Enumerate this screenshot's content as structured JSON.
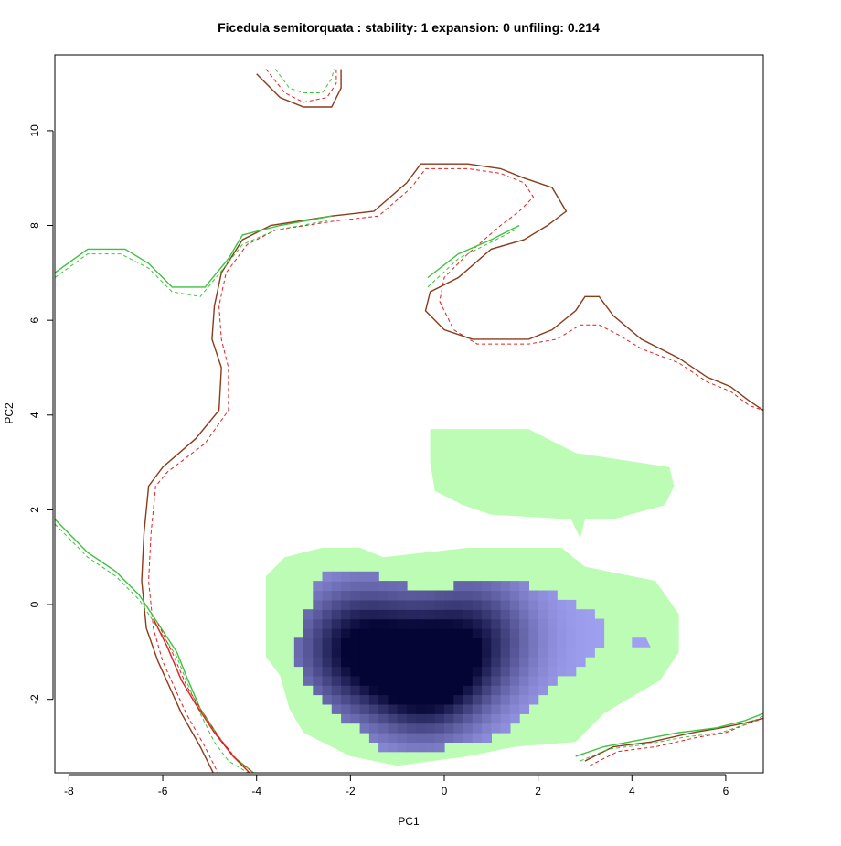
{
  "chart_data": {
    "type": "heatmap",
    "title": "Ficedula semitorquata : stability: 1 expansion: 0 unfiling: 0.214",
    "xlabel": "PC1",
    "ylabel": "PC2",
    "xlim": [
      -8.3,
      6.8
    ],
    "ylim": [
      -3.55,
      11.6
    ],
    "xticks": [
      -8,
      -6,
      -4,
      -2,
      0,
      2,
      4,
      6
    ],
    "yticks": [
      -2,
      0,
      2,
      4,
      6,
      8,
      10
    ],
    "grid": false,
    "legend": "none",
    "colors": {
      "overlap_fill": "#bcfcb4",
      "density_low": "#a0a0f2",
      "density_high": "#050535",
      "native_contour": "#8b3a1a",
      "native_contour_env": "#e02020",
      "invaded_contour": "#3ec23e"
    },
    "regions": {
      "green_upper_blob": [
        [
          -0.3,
          3.7
        ],
        [
          1.8,
          3.7
        ],
        [
          2.8,
          3.2
        ],
        [
          4.8,
          2.9
        ],
        [
          4.9,
          2.5
        ],
        [
          4.7,
          2.1
        ],
        [
          3.6,
          1.8
        ],
        [
          3.0,
          1.8
        ],
        [
          2.9,
          1.4
        ],
        [
          2.7,
          1.8
        ],
        [
          1.0,
          1.9
        ],
        [
          0.4,
          2.1
        ],
        [
          -0.2,
          2.4
        ],
        [
          -0.3,
          3.0
        ]
      ],
      "green_lower_blob": [
        [
          -3.8,
          0.6
        ],
        [
          -3.4,
          1.0
        ],
        [
          -2.6,
          1.2
        ],
        [
          -1.8,
          1.2
        ],
        [
          -1.3,
          1.0
        ],
        [
          0.5,
          1.2
        ],
        [
          2.5,
          1.2
        ],
        [
          3.0,
          0.8
        ],
        [
          4.5,
          0.5
        ],
        [
          5.0,
          -0.2
        ],
        [
          5.0,
          -1.0
        ],
        [
          4.6,
          -1.6
        ],
        [
          3.9,
          -2.0
        ],
        [
          3.4,
          -2.3
        ],
        [
          2.8,
          -2.9
        ],
        [
          1.5,
          -3.0
        ],
        [
          0.5,
          -3.2
        ],
        [
          -1.0,
          -3.4
        ],
        [
          -2.0,
          -3.2
        ],
        [
          -3.0,
          -2.7
        ],
        [
          -3.3,
          -2.2
        ],
        [
          -3.5,
          -1.5
        ],
        [
          -3.8,
          -1.1
        ]
      ],
      "density_region": [
        [
          -3.0,
          -0.6
        ],
        [
          -2.7,
          0.6
        ],
        [
          -1.8,
          0.8
        ],
        [
          -1.2,
          0.5
        ],
        [
          -0.3,
          0.3
        ],
        [
          0.5,
          0.5
        ],
        [
          1.5,
          0.5
        ],
        [
          2.5,
          0.2
        ],
        [
          3.3,
          -0.2
        ],
        [
          3.5,
          -0.8
        ],
        [
          3.0,
          -1.2
        ],
        [
          2.4,
          -1.6
        ],
        [
          1.8,
          -2.3
        ],
        [
          1.0,
          -2.8
        ],
        [
          0.0,
          -3.0
        ],
        [
          -1.0,
          -3.2
        ],
        [
          -1.6,
          -2.8
        ],
        [
          -2.4,
          -2.2
        ],
        [
          -3.0,
          -1.5
        ],
        [
          -3.3,
          -1.0
        ]
      ],
      "density_small_square": [
        [
          4.0,
          -0.7
        ],
        [
          4.3,
          -0.7
        ],
        [
          4.4,
          -0.9
        ],
        [
          4.0,
          -0.9
        ]
      ],
      "density_peaks": [
        {
          "x": -1.8,
          "y": -0.9,
          "weight": 1.0,
          "spread": 0.9
        },
        {
          "x": -0.4,
          "y": -1.6,
          "weight": 1.0,
          "spread": 0.8
        },
        {
          "x": 0.6,
          "y": -0.7,
          "weight": 0.75,
          "spread": 0.9
        }
      ]
    },
    "contours": {
      "native_solid_main": [
        [
          -4.9,
          -3.6
        ],
        [
          -5.2,
          -3.0
        ],
        [
          -5.6,
          -2.3
        ],
        [
          -6.1,
          -1.2
        ],
        [
          -6.35,
          -0.5
        ],
        [
          -6.45,
          0.5
        ],
        [
          -6.4,
          1.5
        ],
        [
          -6.3,
          2.5
        ],
        [
          -6.0,
          2.9
        ],
        [
          -5.3,
          3.5
        ],
        [
          -4.8,
          4.1
        ],
        [
          -4.75,
          5.0
        ],
        [
          -4.95,
          5.6
        ],
        [
          -4.9,
          6.3
        ],
        [
          -4.75,
          7.0
        ],
        [
          -4.3,
          7.7
        ],
        [
          -3.7,
          8.0
        ],
        [
          -2.4,
          8.2
        ],
        [
          -1.5,
          8.3
        ],
        [
          -0.8,
          8.9
        ],
        [
          -0.5,
          9.3
        ],
        [
          0.5,
          9.3
        ],
        [
          1.2,
          9.2
        ],
        [
          1.7,
          9.0
        ],
        [
          2.3,
          8.8
        ],
        [
          2.6,
          8.3
        ],
        [
          2.2,
          8.0
        ],
        [
          1.7,
          7.7
        ],
        [
          1.0,
          7.5
        ],
        [
          0.3,
          6.9
        ],
        [
          -0.3,
          6.6
        ],
        [
          -0.4,
          6.2
        ],
        [
          0.0,
          5.8
        ],
        [
          0.6,
          5.6
        ],
        [
          1.8,
          5.6
        ],
        [
          2.3,
          5.8
        ],
        [
          2.8,
          6.2
        ],
        [
          3.0,
          6.5
        ],
        [
          3.3,
          6.5
        ],
        [
          3.6,
          6.1
        ],
        [
          4.2,
          5.6
        ],
        [
          5.0,
          5.2
        ],
        [
          5.6,
          4.8
        ],
        [
          6.1,
          4.6
        ],
        [
          6.5,
          4.3
        ],
        [
          6.8,
          4.1
        ]
      ],
      "native_dashed_main": [
        [
          -4.8,
          -3.6
        ],
        [
          -5.1,
          -3.0
        ],
        [
          -5.5,
          -2.3
        ],
        [
          -6.0,
          -1.2
        ],
        [
          -6.2,
          -0.5
        ],
        [
          -6.3,
          0.5
        ],
        [
          -6.25,
          1.5
        ],
        [
          -6.15,
          2.5
        ],
        [
          -5.9,
          2.8
        ],
        [
          -5.1,
          3.4
        ],
        [
          -4.6,
          4.1
        ],
        [
          -4.6,
          5.0
        ],
        [
          -4.75,
          5.6
        ],
        [
          -4.8,
          6.3
        ],
        [
          -4.65,
          7.0
        ],
        [
          -4.2,
          7.6
        ],
        [
          -3.6,
          7.9
        ],
        [
          -2.3,
          8.1
        ],
        [
          -1.4,
          8.2
        ],
        [
          -0.7,
          8.8
        ],
        [
          -0.4,
          9.2
        ],
        [
          0.5,
          9.2
        ],
        [
          1.2,
          9.1
        ],
        [
          1.7,
          8.9
        ],
        [
          1.9,
          8.6
        ],
        [
          1.6,
          8.3
        ],
        [
          1.2,
          8.0
        ],
        [
          0.5,
          7.4
        ],
        [
          0.0,
          6.9
        ],
        [
          -0.1,
          6.4
        ],
        [
          0.2,
          5.8
        ],
        [
          0.7,
          5.5
        ],
        [
          1.8,
          5.5
        ],
        [
          2.4,
          5.6
        ],
        [
          2.9,
          5.9
        ],
        [
          3.3,
          5.9
        ],
        [
          3.7,
          5.7
        ],
        [
          4.2,
          5.4
        ],
        [
          5.0,
          5.1
        ],
        [
          5.6,
          4.7
        ],
        [
          6.1,
          4.5
        ],
        [
          6.5,
          4.2
        ],
        [
          6.8,
          4.1
        ]
      ],
      "invaded_solid_left": [
        [
          -8.3,
          7.0
        ],
        [
          -7.6,
          7.5
        ],
        [
          -6.8,
          7.5
        ],
        [
          -6.3,
          7.2
        ],
        [
          -5.8,
          6.7
        ],
        [
          -5.1,
          6.7
        ],
        [
          -4.6,
          7.3
        ],
        [
          -4.3,
          7.8
        ],
        [
          -3.5,
          8.0
        ],
        [
          -2.4,
          8.2
        ]
      ],
      "invaded_dashed_left": [
        [
          -8.3,
          6.9
        ],
        [
          -7.6,
          7.4
        ],
        [
          -6.9,
          7.4
        ],
        [
          -6.3,
          7.1
        ],
        [
          -5.8,
          6.6
        ],
        [
          -5.2,
          6.5
        ],
        [
          -4.7,
          7.1
        ],
        [
          -4.3,
          7.6
        ],
        [
          -3.6,
          7.9
        ],
        [
          -2.5,
          8.1
        ]
      ],
      "invaded_solid_right_upper": [
        [
          -0.35,
          6.9
        ],
        [
          0.3,
          7.4
        ],
        [
          1.0,
          7.7
        ],
        [
          1.6,
          8.0
        ]
      ],
      "invaded_dashed_right_upper": [
        [
          -0.35,
          6.7
        ],
        [
          0.3,
          7.3
        ],
        [
          0.9,
          7.6
        ],
        [
          1.5,
          7.9
        ]
      ],
      "native_top_solid": [
        [
          -4.0,
          11.2
        ],
        [
          -3.5,
          10.7
        ],
        [
          -3.0,
          10.5
        ],
        [
          -2.4,
          10.5
        ],
        [
          -2.2,
          10.9
        ],
        [
          -2.2,
          11.3
        ]
      ],
      "native_top_dashed": [
        [
          -3.8,
          11.3
        ],
        [
          -3.4,
          10.8
        ],
        [
          -3.0,
          10.6
        ],
        [
          -2.5,
          10.7
        ],
        [
          -2.3,
          11.0
        ],
        [
          -2.3,
          11.3
        ]
      ],
      "invaded_top_dashed": [
        [
          -3.6,
          11.3
        ],
        [
          -3.3,
          10.9
        ],
        [
          -3.0,
          10.8
        ],
        [
          -2.6,
          10.8
        ],
        [
          -2.4,
          11.1
        ],
        [
          -2.35,
          11.3
        ]
      ],
      "invaded_lower_left_solid": [
        [
          -8.3,
          1.8
        ],
        [
          -7.6,
          1.1
        ],
        [
          -7.0,
          0.7
        ],
        [
          -6.5,
          0.2
        ],
        [
          -6.1,
          -0.4
        ],
        [
          -5.7,
          -1.0
        ],
        [
          -5.5,
          -1.5
        ],
        [
          -5.2,
          -2.2
        ],
        [
          -4.8,
          -2.8
        ],
        [
          -4.5,
          -3.2
        ],
        [
          -4.0,
          -3.6
        ]
      ],
      "invaded_lower_left_dashed": [
        [
          -8.3,
          1.7
        ],
        [
          -7.6,
          1.0
        ],
        [
          -7.0,
          0.6
        ],
        [
          -6.5,
          0.1
        ],
        [
          -6.1,
          -0.5
        ],
        [
          -5.7,
          -1.1
        ],
        [
          -5.5,
          -1.6
        ],
        [
          -5.2,
          -2.3
        ],
        [
          -4.9,
          -2.9
        ],
        [
          -4.6,
          -3.3
        ],
        [
          -4.1,
          -3.6
        ]
      ],
      "native_lower_left_solid": [
        [
          -6.2,
          -0.3
        ],
        [
          -5.9,
          -0.9
        ],
        [
          -5.6,
          -1.6
        ],
        [
          -5.3,
          -2.1
        ],
        [
          -4.9,
          -2.7
        ],
        [
          -4.5,
          -3.2
        ],
        [
          -4.1,
          -3.6
        ]
      ],
      "native_lower_left_dashed": [
        [
          -6.1,
          -0.4
        ],
        [
          -5.8,
          -1.0
        ],
        [
          -5.5,
          -1.7
        ],
        [
          -5.2,
          -2.2
        ],
        [
          -4.8,
          -2.8
        ],
        [
          -4.4,
          -3.3
        ],
        [
          -4.0,
          -3.6
        ]
      ],
      "native_lower_right_solid": [
        [
          3.0,
          -3.3
        ],
        [
          3.6,
          -3.0
        ],
        [
          4.4,
          -2.9
        ],
        [
          5.3,
          -2.7
        ],
        [
          5.9,
          -2.6
        ],
        [
          6.4,
          -2.5
        ],
        [
          6.8,
          -2.4
        ]
      ],
      "native_lower_right_dashed": [
        [
          3.1,
          -3.4
        ],
        [
          3.7,
          -3.1
        ],
        [
          4.5,
          -3.0
        ],
        [
          5.4,
          -2.8
        ],
        [
          6.0,
          -2.7
        ],
        [
          6.5,
          -2.5
        ],
        [
          6.8,
          -2.4
        ]
      ],
      "invaded_lower_right_solid": [
        [
          2.8,
          -3.2
        ],
        [
          3.4,
          -3.0
        ],
        [
          4.2,
          -2.85
        ],
        [
          5.0,
          -2.7
        ],
        [
          5.8,
          -2.6
        ],
        [
          6.4,
          -2.45
        ],
        [
          6.8,
          -2.3
        ]
      ],
      "invaded_lower_right_dashed": [
        [
          2.9,
          -3.3
        ],
        [
          3.5,
          -3.05
        ],
        [
          4.3,
          -2.95
        ],
        [
          5.1,
          -2.8
        ],
        [
          5.9,
          -2.7
        ],
        [
          6.5,
          -2.5
        ],
        [
          6.8,
          -2.35
        ]
      ]
    }
  }
}
